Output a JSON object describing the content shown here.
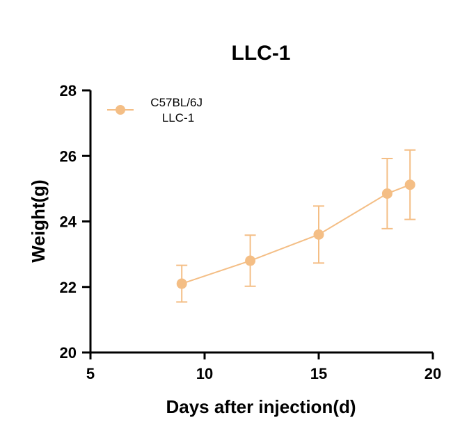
{
  "chart_data": {
    "type": "line",
    "title": "LLC-1",
    "xlabel": "Days after injection(d)",
    "ylabel": "Weight(g)",
    "xlim": [
      5,
      20
    ],
    "ylim": [
      20,
      28
    ],
    "xticks": [
      "5",
      "10",
      "15",
      "20"
    ],
    "yticks": [
      "20",
      "22",
      "24",
      "26",
      "28"
    ],
    "grid": false,
    "legend_position": "top-left",
    "series": [
      {
        "name": "C57BL/6J\nLLC-1",
        "name_lines": [
          "C57BL/6J",
          "LLC-1"
        ],
        "color": "#F4BE85",
        "x": [
          9,
          12,
          15,
          18,
          19
        ],
        "y": [
          22.1,
          22.8,
          23.6,
          24.85,
          25.12
        ],
        "error": [
          0.56,
          0.78,
          0.87,
          1.07,
          1.06
        ]
      }
    ]
  }
}
